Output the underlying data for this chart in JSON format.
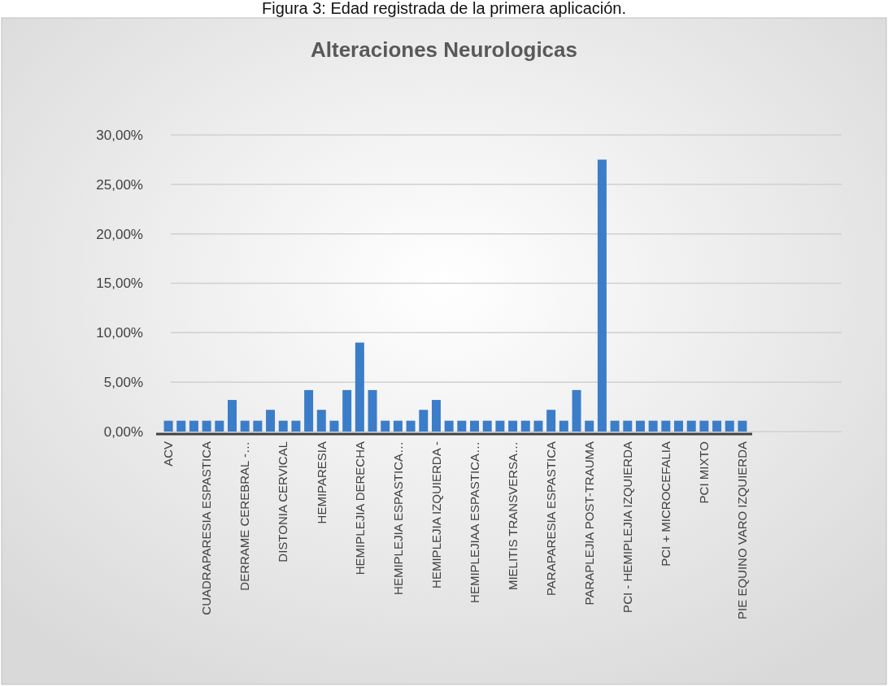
{
  "chart_data": {
    "type": "bar",
    "title": "Alteraciones Neurologicas",
    "annotations": [
      "Figura 3: Edad registrada de la primera aplicación."
    ],
    "categories": [
      "ACV",
      null,
      null,
      "CUADRAPARESIA ESPASTICA",
      null,
      null,
      "DERRAME CEREBRAL -…",
      null,
      null,
      "DISTONIA CERVICAL",
      null,
      null,
      "HEMIPARESIA",
      null,
      null,
      "HEMIPLEJIA DERECHA",
      null,
      null,
      "HEMIPLEJIA ESPASTICA…",
      null,
      null,
      "HEMIPLEJIA IZQUIERDA -",
      null,
      null,
      "HEMIPLEJIAA ESPASTICA…",
      null,
      null,
      "MIELITIS TRANSVERSA…",
      null,
      null,
      "PARAPARESIA ESPASTICA",
      null,
      null,
      "PARAPLEJIA POST-TRAUMA",
      null,
      null,
      "PCI - HEMIPLEJIA IZQUIERDA",
      null,
      null,
      "PCI + MICROCEFALIA",
      null,
      null,
      "PCI MIXTO",
      null,
      null,
      "PIE EQUINO VARO IZQUIERDA"
    ],
    "values": [
      1.1,
      1.1,
      1.1,
      1.1,
      1.1,
      3.2,
      1.1,
      1.1,
      2.2,
      1.1,
      1.1,
      4.2,
      2.2,
      1.1,
      4.2,
      9.0,
      4.2,
      1.1,
      1.1,
      1.1,
      2.2,
      3.2,
      1.1,
      1.1,
      1.1,
      1.1,
      1.1,
      1.1,
      1.1,
      1.1,
      2.2,
      1.1,
      4.2,
      1.1,
      27.5,
      1.1,
      1.1,
      1.1,
      1.1,
      1.1,
      1.1,
      1.1,
      1.1,
      1.1,
      1.1,
      1.1
    ],
    "color": "#3b7dc8",
    "ylim": [
      0,
      30
    ],
    "yticks": [
      {
        "value": 0,
        "label": "0,00%"
      },
      {
        "value": 5,
        "label": "5,00%"
      },
      {
        "value": 10,
        "label": "10,00%"
      },
      {
        "value": 15,
        "label": "15,00%"
      },
      {
        "value": 20,
        "label": "20,00%"
      },
      {
        "value": 25,
        "label": "25,00%"
      },
      {
        "value": 30,
        "label": "30,00%"
      }
    ],
    "grid": "y"
  }
}
